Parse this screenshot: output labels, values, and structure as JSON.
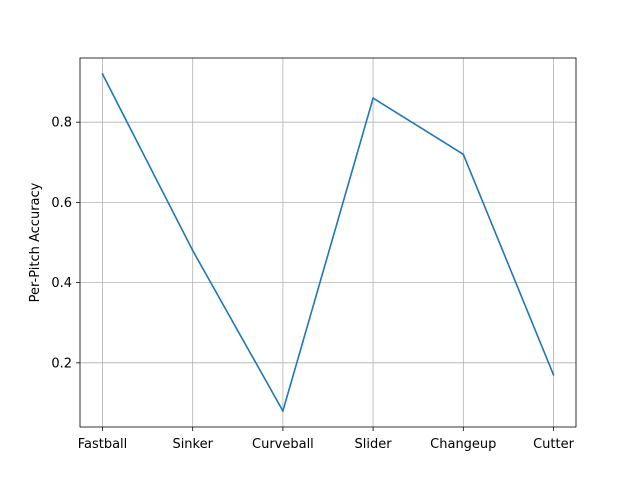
{
  "chart_data": {
    "type": "line",
    "title": "",
    "xlabel": "",
    "ylabel": "Per-Pitch Accuracy",
    "categories": [
      "Fastball",
      "Sinker",
      "Curveball",
      "Slider",
      "Changeup",
      "Cutter"
    ],
    "series": [
      {
        "values": [
          0.92,
          0.48,
          0.08,
          0.86,
          0.72,
          0.17
        ],
        "color": "#1f77b4"
      }
    ],
    "ylim": [
      0.04,
      0.96
    ],
    "yticks": [
      0.2,
      0.4,
      0.6,
      0.8
    ],
    "grid": true
  }
}
